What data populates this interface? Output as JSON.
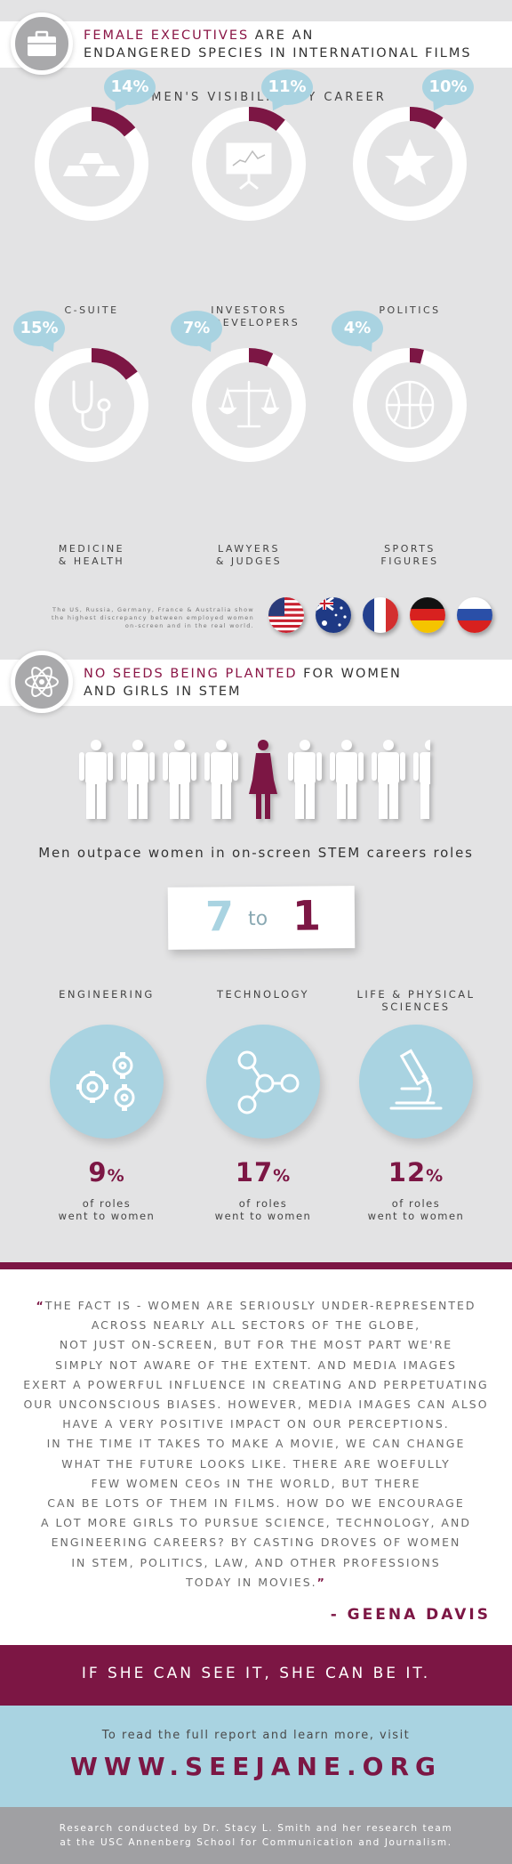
{
  "section1": {
    "title_highlight": "FEMALE EXECUTIVES",
    "title_rest_line1": " ARE AN",
    "title_line2": "ENDANGERED SPECIES IN INTERNATIONAL FILMS",
    "subtitle": "WOMEN'S VISIBILITY BY CAREER",
    "careers": [
      {
        "label_line1": "C-SUITE",
        "label_line2": "",
        "percent": "14%",
        "value": 14,
        "icon": "gold-bars-icon"
      },
      {
        "label_line1": "INVESTORS",
        "label_line2": "& DEVELOPERS",
        "percent": "11%",
        "value": 11,
        "icon": "chart-board-icon"
      },
      {
        "label_line1": "POLITICS",
        "label_line2": "",
        "percent": "10%",
        "value": 10,
        "icon": "star-icon"
      },
      {
        "label_line1": "MEDICINE",
        "label_line2": "& HEALTH",
        "percent": "15%",
        "value": 15,
        "icon": "stethoscope-icon"
      },
      {
        "label_line1": "LAWYERS",
        "label_line2": "& JUDGES",
        "percent": "7%",
        "value": 7,
        "icon": "scales-icon"
      },
      {
        "label_line1": "SPORTS",
        "label_line2": "FIGURES",
        "percent": "4%",
        "value": 4,
        "icon": "basketball-icon"
      }
    ],
    "flags_note_line1": "The US, Russia, Germany, France & Australia show",
    "flags_note_line2": "the highest discrepancy between employed women",
    "flags_note_line3": "on-screen and in the real world.",
    "flags": [
      "us-flag-icon",
      "australia-flag-icon",
      "france-flag-icon",
      "germany-flag-icon",
      "russia-flag-icon"
    ]
  },
  "section2": {
    "title_highlight": "NO SEEDS BEING PLANTED",
    "title_rest_line1": " FOR WOMEN",
    "title_line2": "AND GIRLS IN STEM",
    "statement": "Men outpace women in on-screen STEM careers roles",
    "ratio_left": "7",
    "ratio_mid": "to",
    "ratio_right": "1",
    "fields": [
      {
        "label_line1": "ENGINEERING",
        "label_line2": "",
        "percent": "9",
        "icon": "gears-icon"
      },
      {
        "label_line1": "TECHNOLOGY",
        "label_line2": "",
        "percent": "17",
        "icon": "network-icon"
      },
      {
        "label_line1": "LIFE & PHYSICAL",
        "label_line2": "SCIENCES",
        "percent": "12",
        "icon": "microscope-icon"
      }
    ],
    "pct_sign": "%",
    "sub_line1": "of roles",
    "sub_line2": "went to women"
  },
  "quote": {
    "open_mark": "“",
    "close_mark": "”",
    "lines": [
      "THE FACT IS - WOMEN ARE SERIOUSLY UNDER-REPRESENTED",
      "ACROSS NEARLY ALL SECTORS OF THE GLOBE,",
      "NOT JUST ON-SCREEN, BUT FOR THE MOST PART WE'RE",
      "SIMPLY NOT AWARE OF THE EXTENT. AND MEDIA IMAGES",
      "EXERT A POWERFUL INFLUENCE IN CREATING AND PERPETUATING",
      "OUR UNCONSCIOUS BIASES. HOWEVER, MEDIA IMAGES CAN ALSO",
      "HAVE A VERY POSITIVE IMPACT ON OUR PERCEPTIONS.",
      "IN THE TIME IT TAKES TO MAKE A MOVIE, WE CAN CHANGE",
      "WHAT THE FUTURE LOOKS LIKE. THERE ARE WOEFULLY",
      "FEW WOMEN CEOs IN THE WORLD, BUT THERE",
      "CAN BE LOTS OF THEM IN FILMS. HOW DO WE ENCOURAGE",
      "A LOT MORE GIRLS TO PURSUE SCIENCE, TECHNOLOGY,  AND",
      "ENGINEERING CAREERS? BY CASTING DROVES OF WOMEN",
      "IN STEM, POLITICS, LAW, AND OTHER PROFESSIONS",
      "TODAY IN MOVIES."
    ],
    "attribution": "- GEENA DAVIS"
  },
  "tagline": "IF SHE CAN SEE IT, SHE CAN BE IT.",
  "cta": {
    "text": "To read the full report and learn more, visit",
    "url_label": "WWW.SEEJANE.ORG"
  },
  "footer": {
    "line1": "Research conducted by Dr. Stacy L. Smith and her research team",
    "line2": "at the USC Annenberg School for Communication and Journalism."
  },
  "colors": {
    "accent": "#8a1646",
    "light_blue": "#a9d3e1",
    "gray_bg": "#e3e3e4"
  }
}
